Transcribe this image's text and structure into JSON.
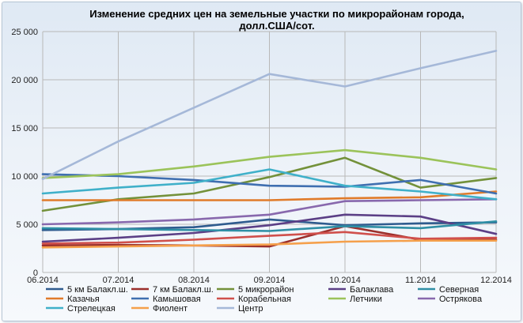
{
  "chart_data": {
    "type": "line",
    "title": "Изменение средних цен на земельные участки по микрорайонам города,",
    "subtitle": "долл.США/сот.",
    "x": [
      "06.2014",
      "07.2014",
      "08.2014",
      "09.2014",
      "10.2014",
      "11.2014",
      "12.2014"
    ],
    "ylim": [
      0,
      25000
    ],
    "yticks": [
      "0",
      "5 000",
      "10 000",
      "15 000",
      "20 000",
      "25 000"
    ],
    "grid": true,
    "legend_position": "bottom",
    "series": [
      {
        "name": "5 км Балакл.ш.",
        "color": "#2e5b8e",
        "values": [
          4400,
          4500,
          4700,
          5500,
          4900,
          5100,
          5200
        ]
      },
      {
        "name": "7 км Балакл.ш.",
        "color": "#9b2f2b",
        "values": [
          2800,
          2850,
          2800,
          2700,
          4800,
          3400,
          3400
        ]
      },
      {
        "name": "5 микрорайон",
        "color": "#73913a",
        "values": [
          6400,
          7600,
          8200,
          9900,
          11900,
          8800,
          9800
        ]
      },
      {
        "name": "Балаклава",
        "color": "#5b3f86",
        "values": [
          3200,
          3600,
          4100,
          4900,
          6000,
          5800,
          4000
        ]
      },
      {
        "name": "Северная",
        "color": "#2f8fa5",
        "values": [
          4600,
          4500,
          4400,
          4300,
          4800,
          4600,
          5300
        ]
      },
      {
        "name": "Казачья",
        "color": "#e07b2a",
        "values": [
          7500,
          7500,
          7500,
          7500,
          7700,
          7800,
          8400
        ]
      },
      {
        "name": "Камышовая",
        "color": "#3f6fb0",
        "values": [
          10200,
          10000,
          9600,
          9000,
          8900,
          9600,
          8200
        ]
      },
      {
        "name": "Корабельная",
        "color": "#d0504c",
        "values": [
          3000,
          3100,
          3400,
          3800,
          4200,
          3500,
          3600
        ]
      },
      {
        "name": "Летчики",
        "color": "#9bc35a",
        "values": [
          9800,
          10200,
          11000,
          12000,
          12700,
          11900,
          10700
        ]
      },
      {
        "name": "Остряковa",
        "color": "#8868ad",
        "values": [
          5000,
          5200,
          5500,
          6000,
          7400,
          7500,
          7600
        ]
      },
      {
        "name": "Стрелецкая",
        "color": "#3fb0c9",
        "values": [
          8200,
          8800,
          9300,
          10700,
          9000,
          8400,
          7600
        ]
      },
      {
        "name": "Фиолент",
        "color": "#f5a04b",
        "values": [
          2600,
          2700,
          2800,
          2900,
          3200,
          3300,
          3300
        ]
      },
      {
        "name": "Центр",
        "color": "#a5b8d8",
        "values": [
          9700,
          13600,
          17100,
          20600,
          19300,
          21200,
          23000
        ]
      }
    ]
  }
}
